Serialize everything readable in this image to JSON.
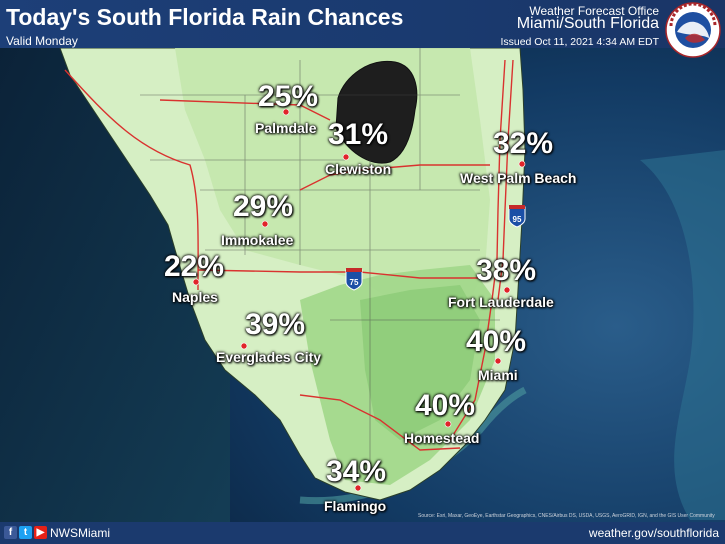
{
  "header": {
    "title": "Today's South Florida Rain Chances",
    "valid": "Valid Monday",
    "office": "Weather Forecast Office",
    "location": "Miami/South Florida",
    "issued": "Issued Oct 11, 2021 4:34 AM EDT"
  },
  "logo": {
    "icon": "noaa-nws-logo-icon",
    "arc_text": "NATIONAL WEATHER SERVICE"
  },
  "map": {
    "highways": [
      "75",
      "95"
    ],
    "locations": [
      {
        "pct": "25%",
        "city": "Palmdale"
      },
      {
        "pct": "31%",
        "city": "Clewiston"
      },
      {
        "pct": "32%",
        "city": "West Palm Beach"
      },
      {
        "pct": "29%",
        "city": "Immokalee"
      },
      {
        "pct": "22%",
        "city": "Naples"
      },
      {
        "pct": "38%",
        "city": "Fort Lauderdale"
      },
      {
        "pct": "39%",
        "city": "Everglades City"
      },
      {
        "pct": "40%",
        "city": "Miami"
      },
      {
        "pct": "40%",
        "city": "Homestead"
      },
      {
        "pct": "34%",
        "city": "Flamingo"
      }
    ],
    "credits": "Source: Esri, Maxar, GeoEye, Earthstar Geographics, CNES/Airbus DS, USDA, USGS, AeroGRID, IGN, and the GIS User Community"
  },
  "footer": {
    "handle": "NWSMiami",
    "website": "weather.gov/southflorida"
  },
  "colors": {
    "header": "#1d3f78",
    "dot": "#e0242a",
    "land_light": "#d6efc4",
    "land_mid": "#b5df9c",
    "land_dark": "#8fcc7a"
  }
}
